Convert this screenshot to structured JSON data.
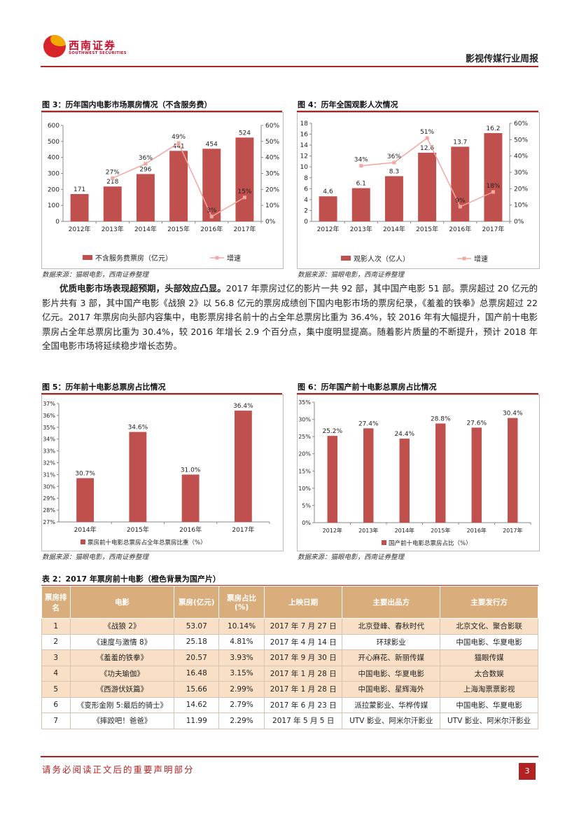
{
  "header": {
    "brand_cn": "西南证券",
    "brand_en": "SOUTHWEST SECURITIES",
    "report_type": "影视传媒行业周报"
  },
  "colors": {
    "accent": "#b22222",
    "bar": "#c0504d",
    "line": "#f4a6a0",
    "table_head": "#d9ae7c",
    "row_domestic": "#f8dfc5"
  },
  "fig3": {
    "title": "图 3：历年国内电影市场票房情况（不含服务费）",
    "legend_bar": "不含服务费票房（亿元）",
    "legend_line": "增速",
    "source": "数据来源：猫眼电影，西南证券整理"
  },
  "fig4": {
    "title": "图 4：历年全国观影人次情况",
    "legend_bar": "观影人次（亿人）",
    "legend_line": "增速",
    "source": "数据来源：猫眼电影，西南证券整理"
  },
  "fig5": {
    "title": "图 5：历年前十电影总票房占比情况",
    "legend": "票房前十电影总票房占全年总票房比重（%）",
    "source": "数据来源：猫眼电影，西南证券整理"
  },
  "fig6": {
    "title": "图 6：历年国产前十电影总票房占比情况",
    "legend": "国产前十电影总票房占比（%）",
    "source": "数据来源：猫眼电影，西南证券整理"
  },
  "paragraph": {
    "lead": "优质电影市场表现超预期，头部效应凸显。",
    "body": "2017 年票房过亿的影片一共 92 部，其中国产电影 51 部。票房超过 20 亿元的影片共有 3 部，其中国产电影《战狼 2》以 56.8 亿元的票房成绩创下国内电影市场的票房纪录，《羞羞的铁拳》总票房超过 22 亿元。2017 年票房向头部内容集中，电影票房排名前十的占全年总票房比重为 36.4%，较 2016 年有大幅提升，国产前十电影票房占全年总票房比重为 30.4%，较 2016 年增长 2.9 个百分点，集中度明显提高。随着影片质量的不断提升，预计 2018 年全国电影市场将延续稳步增长态势。"
  },
  "table": {
    "title": "表 2：2017 年票房前十电影（橙色背景为国产片）",
    "headers": [
      "票房排名",
      "电影",
      "票房(亿元)",
      "票房占比(%)",
      "上映日期",
      "主要出品方",
      "主要发行方"
    ],
    "rows": [
      {
        "rank": "1",
        "film": "《战狼 2》",
        "box": "53.07",
        "share": "10.14%",
        "date": "2017 年 7 月 27 日",
        "producer": "北京登峰、春秋时代",
        "distributor": "北京文化、聚合影联"
      },
      {
        "rank": "2",
        "film": "《速度与激情 8》",
        "box": "25.18",
        "share": "4.81%",
        "date": "2017 年 4 月 14 日",
        "producer": "环球影业",
        "distributor": "中国电影、华夏电影"
      },
      {
        "rank": "3",
        "film": "《羞羞的铁拳》",
        "box": "20.57",
        "share": "3.93%",
        "date": "2017 年 9 月 30 日",
        "producer": "开心麻花、新丽传媒",
        "distributor": "猫眼传媒"
      },
      {
        "rank": "4",
        "film": "《功夫瑜伽》",
        "box": "16.48",
        "share": "3.15%",
        "date": "2017 年 1 月 28 日",
        "producer": "中国电影、华夏电影",
        "distributor": "太合数娱"
      },
      {
        "rank": "5",
        "film": "《西游伏妖篇》",
        "box": "15.66",
        "share": "2.99%",
        "date": "2017 年 1 月 28 日",
        "producer": "中国电影、星辉海外",
        "distributor": "上海淘票票影视"
      },
      {
        "rank": "6",
        "film": "《变形金刚 5:最后的骑士》",
        "box": "14.62",
        "share": "2.79%",
        "date": "2017 年 6 月 23 日",
        "producer": "派拉蒙影业、华桦传媒",
        "distributor": "中国电影、华夏电影"
      },
      {
        "rank": "7",
        "film": "《摔跤吧！爸爸》",
        "box": "11.99",
        "share": "2.29%",
        "date": "2017 年 5 月 5 日",
        "producer": "UTV 影业、阿米尔汗影业",
        "distributor": "UTV 影业、阿米尔汗影业"
      }
    ]
  },
  "footer": {
    "disclaimer": "请务必阅读正文后的重要声明部分",
    "page": "3"
  },
  "chart_data": [
    {
      "id": "fig3",
      "type": "bar",
      "categories": [
        "2012年",
        "2013年",
        "2014年",
        "2015年",
        "2016年",
        "2017年"
      ],
      "series": [
        {
          "name": "不含服务费票房（亿元）",
          "values": [
            171,
            218,
            296,
            441,
            454,
            524
          ],
          "labels": [
            "171",
            "218",
            "296",
            "441",
            "454",
            "524"
          ]
        },
        {
          "name": "增速",
          "type": "line",
          "axis": "right",
          "values": [
            null,
            27,
            36,
            49,
            3,
            15
          ],
          "labels": [
            "",
            "27%",
            "36%",
            "49%",
            "3%",
            "15%"
          ]
        }
      ],
      "ylim": [
        0,
        600
      ],
      "yticks": [
        "0",
        "100",
        "200",
        "300",
        "400",
        "500",
        "600"
      ],
      "y2lim": [
        0,
        60
      ],
      "y2ticks": [
        "0%",
        "10%",
        "20%",
        "30%",
        "40%",
        "50%",
        "60%"
      ]
    },
    {
      "id": "fig4",
      "type": "bar",
      "categories": [
        "2012年",
        "2013年",
        "2014年",
        "2015年",
        "2016年",
        "2017年"
      ],
      "series": [
        {
          "name": "观影人次（亿人）",
          "values": [
            4.6,
            6.1,
            8.3,
            12.6,
            13.7,
            16.2
          ],
          "labels": [
            "4.6",
            "6.1",
            "8.3",
            "12.6",
            "13.7",
            "16.2"
          ]
        },
        {
          "name": "增速",
          "type": "line",
          "axis": "right",
          "values": [
            null,
            34,
            36,
            51,
            9,
            18
          ],
          "labels": [
            "",
            "34%",
            "36%",
            "51%",
            "9%",
            "18%"
          ]
        }
      ],
      "ylim": [
        0,
        18
      ],
      "yticks": [
        "0",
        "2",
        "4",
        "6",
        "8",
        "10",
        "12",
        "14",
        "16",
        "18"
      ],
      "y2lim": [
        0,
        60
      ],
      "y2ticks": [
        "0%",
        "10%",
        "20%",
        "30%",
        "40%",
        "50%",
        "60%"
      ]
    },
    {
      "id": "fig5",
      "type": "bar",
      "categories": [
        "2014年",
        "2015年",
        "2016年",
        "2017年"
      ],
      "series": [
        {
          "name": "票房前十电影总票房占全年总票房比重（%）",
          "values": [
            30.7,
            34.6,
            31.0,
            36.4
          ],
          "labels": [
            "30.7%",
            "34.6%",
            "31.0%",
            "36.4%"
          ]
        }
      ],
      "ylim": [
        27,
        37
      ],
      "yticks": [
        "27%",
        "28%",
        "29%",
        "30%",
        "31%",
        "32%",
        "33%",
        "34%",
        "35%",
        "36%",
        "37%"
      ]
    },
    {
      "id": "fig6",
      "type": "bar",
      "categories": [
        "2012年",
        "2013年",
        "2014年",
        "2015年",
        "2016年",
        "2017年"
      ],
      "series": [
        {
          "name": "国产前十电影总票房占比（%）",
          "values": [
            25.2,
            27.4,
            24.4,
            28.8,
            27.6,
            30.4
          ],
          "labels": [
            "25.2%",
            "27.4%",
            "24.4%",
            "28.8%",
            "27.6%",
            "30.4%"
          ]
        }
      ],
      "ylim": [
        0,
        35
      ],
      "yticks": [
        "0%",
        "5%",
        "10%",
        "15%",
        "20%",
        "25%",
        "30%",
        "35%"
      ]
    }
  ]
}
